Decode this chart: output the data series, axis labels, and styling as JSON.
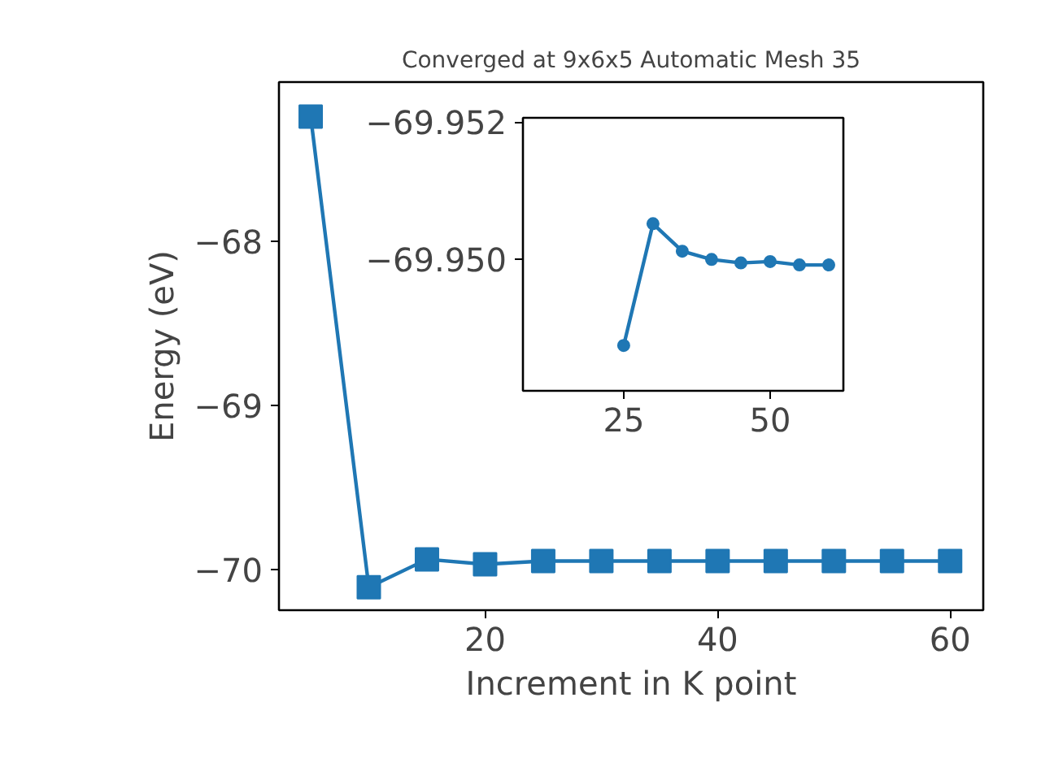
{
  "chart_data": [
    {
      "type": "line",
      "title": "Converged at 9x6x5 Automatic Mesh 35",
      "xlabel": "Increment in K point",
      "ylabel": "Energy (eV)",
      "marker": "square",
      "grid": false,
      "x": [
        5,
        10,
        15,
        20,
        25,
        30,
        35,
        40,
        45,
        50,
        55,
        60
      ],
      "series": [
        {
          "color": "#1f77b4",
          "values": [
            -67.24,
            -70.11,
            -69.94,
            -69.97,
            -69.95,
            -69.95,
            -69.95,
            -69.95,
            -69.95,
            -69.95,
            -69.95,
            -69.95
          ]
        }
      ],
      "xlim": [
        2.27,
        62.85
      ],
      "ylim": [
        -70.25,
        -67.03
      ],
      "xticks": [
        20,
        40,
        60
      ],
      "yticks": [
        {
          "value": -70,
          "label": "−70"
        },
        {
          "value": -69,
          "label": "−69"
        },
        {
          "value": -68,
          "label": "−68"
        }
      ]
    },
    {
      "type": "line",
      "marker": "circle",
      "grid": false,
      "x": [
        25,
        30,
        35,
        40,
        45,
        50,
        55,
        60
      ],
      "series": [
        {
          "color": "#1f77b4",
          "values": [
            -69.94875,
            -69.95052,
            -69.95012,
            -69.95,
            -69.94995,
            -69.94997,
            -69.94992,
            -69.94992
          ]
        }
      ],
      "xlim": [
        7.8,
        62.5
      ],
      "ylim": [
        -69.94809,
        -69.95206
      ],
      "xticks": [
        25,
        50
      ],
      "yticks": [
        {
          "value": -69.952,
          "label": "−69.952"
        },
        {
          "value": -69.95,
          "label": "−69.950"
        }
      ]
    }
  ]
}
